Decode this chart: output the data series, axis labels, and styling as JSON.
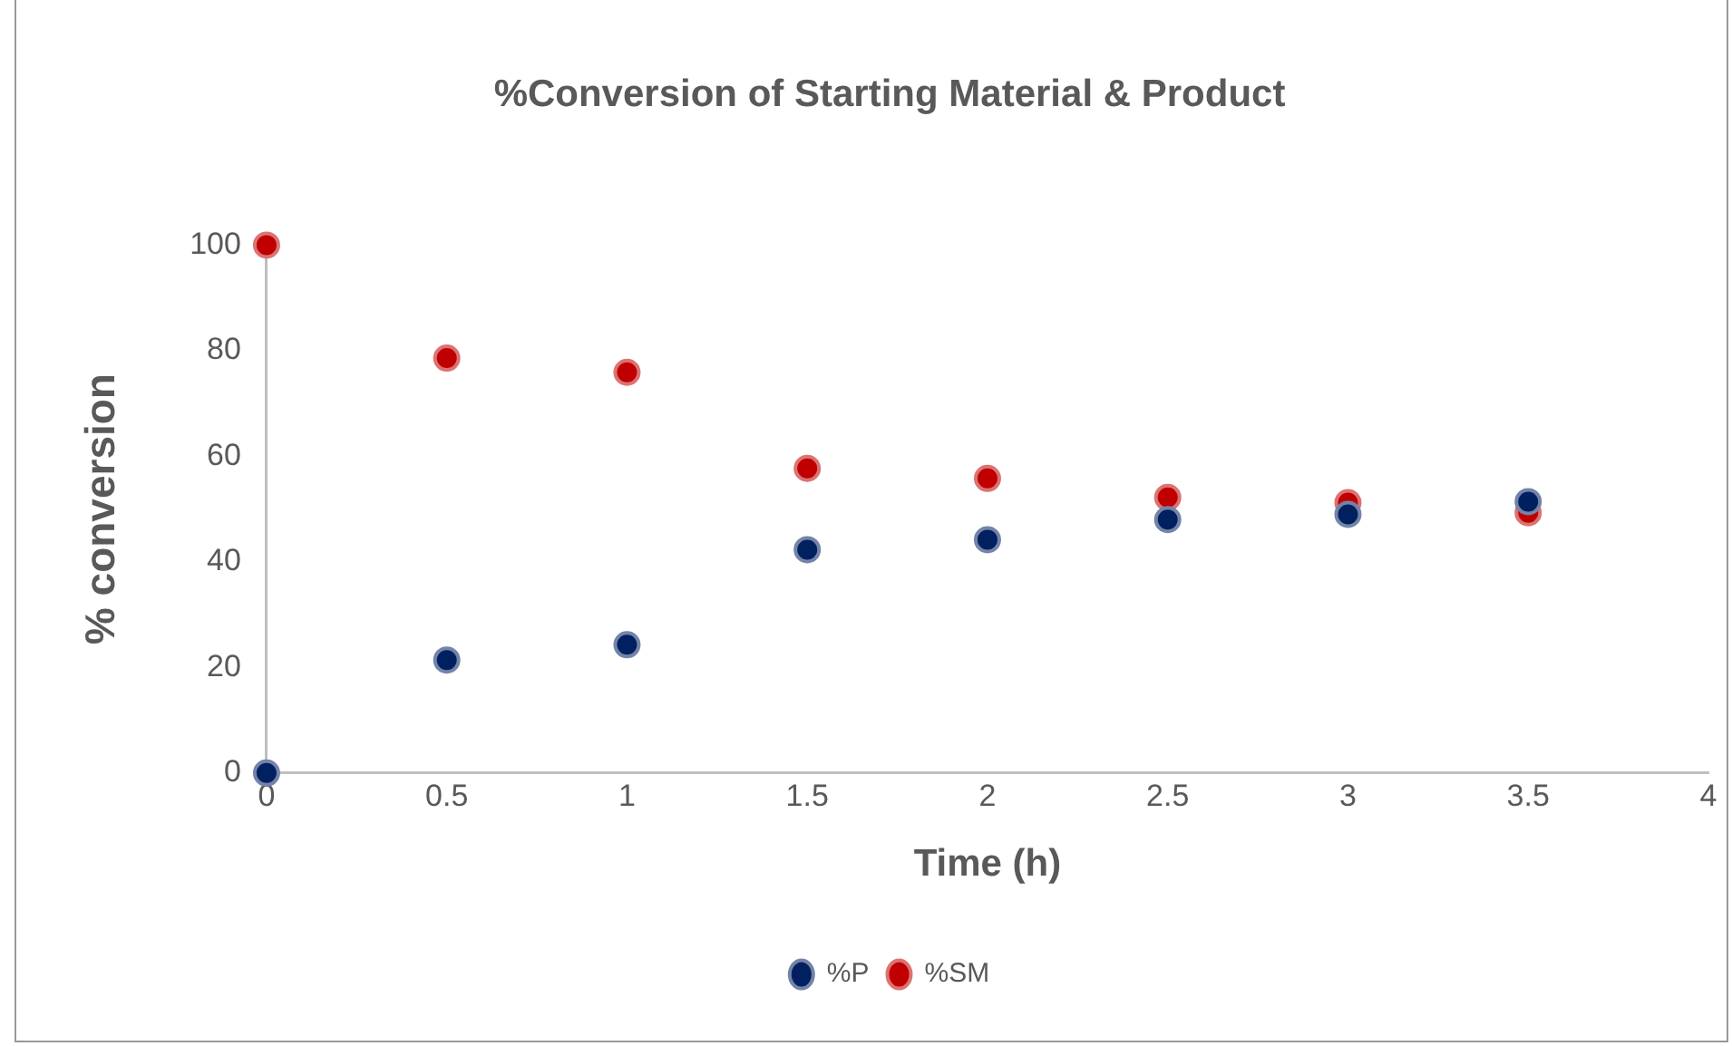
{
  "chart_data": {
    "type": "scatter",
    "title": "%Conversion of Starting Material & Product",
    "xlabel": "Time (h)",
    "ylabel": "% conversion",
    "x": [
      0,
      0.5,
      1,
      1.5,
      2,
      2.5,
      3,
      3.5
    ],
    "series": [
      {
        "name": "%P",
        "color": "#002060",
        "values": [
          0,
          21.4,
          24.3,
          42.3,
          44.2,
          48.0,
          49.0,
          51.4
        ]
      },
      {
        "name": "%SM",
        "color": "#c00000",
        "values": [
          100,
          78.6,
          75.9,
          57.7,
          55.8,
          52.2,
          51.2,
          49.3
        ]
      }
    ],
    "xlim": [
      0,
      4
    ],
    "xticks": [
      0,
      0.5,
      1,
      1.5,
      2,
      2.5,
      3,
      3.5,
      4
    ],
    "ylim": [
      0,
      100
    ],
    "yticks": [
      0,
      20,
      40,
      60,
      80,
      100
    ],
    "grid": false,
    "legend": "bottom",
    "marker": "circle"
  }
}
